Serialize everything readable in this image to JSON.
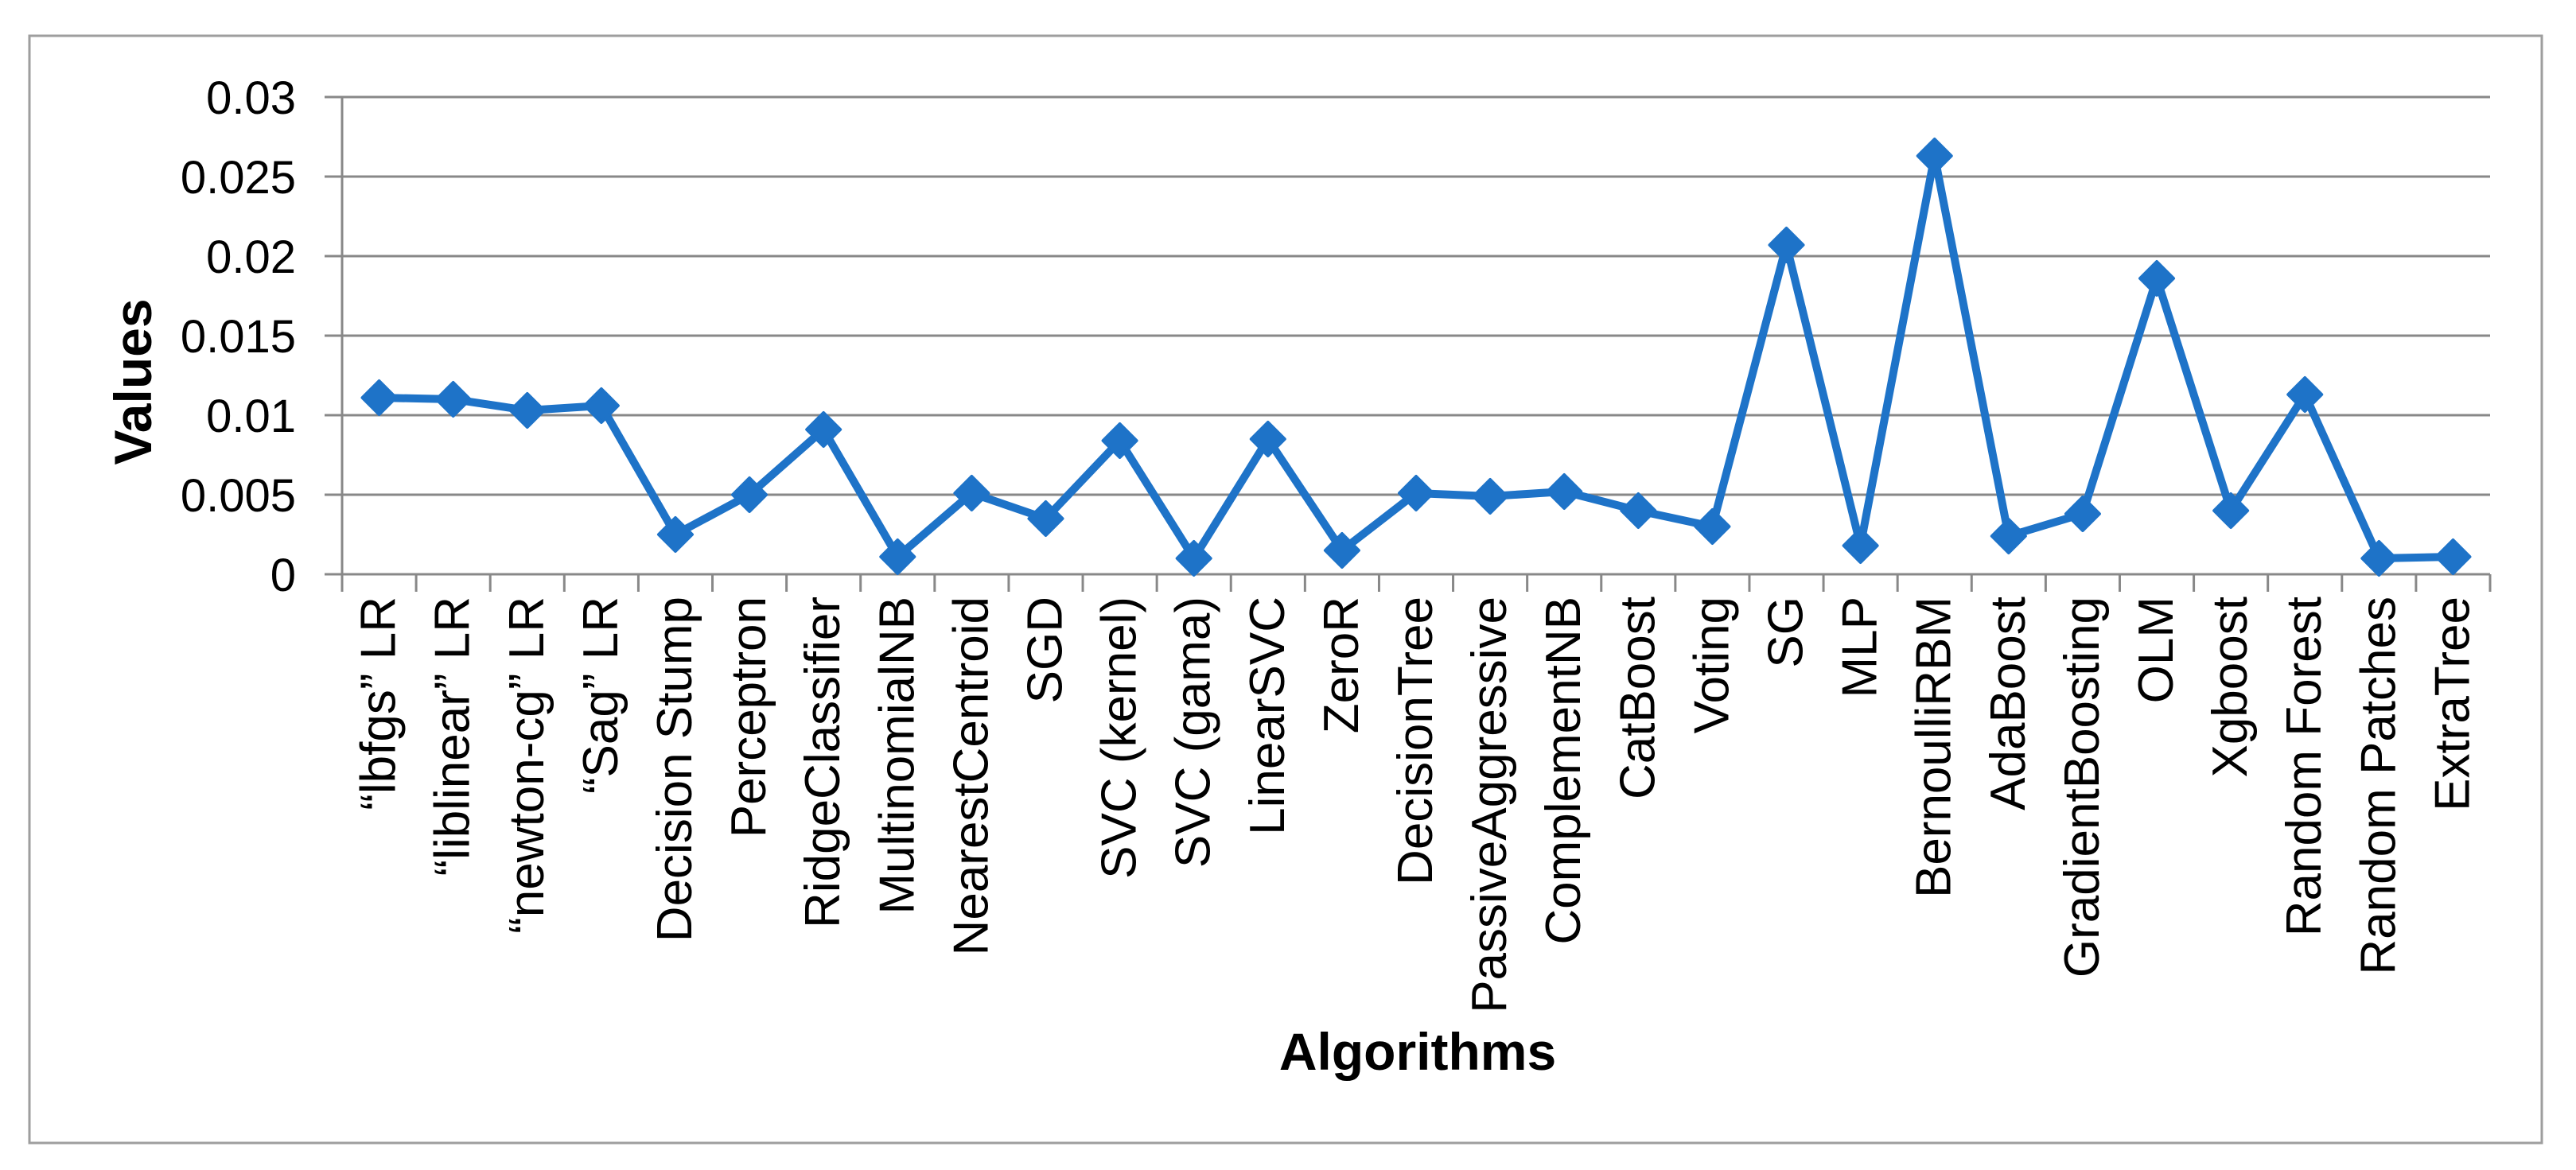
{
  "chart_data": {
    "type": "line",
    "title": "",
    "xlabel": "Algorithms",
    "ylabel": "Values",
    "legend": "none",
    "grid": "horizontal",
    "ylim": [
      0,
      0.03
    ],
    "y_tick_step": 0.005,
    "y_tick_labels": [
      "0",
      "0.005",
      "0.01",
      "0.015",
      "0.02",
      "0.025",
      "0.03"
    ],
    "categories": [
      "“lbfgs” LR",
      "“liblinear” LR",
      "“newton-cg” LR",
      "“Sag” LR",
      "Decision Stump",
      "Perceptron",
      "RidgeClassifier",
      "MultinomialNB",
      "NearestCentroid",
      "SGD",
      "SVC (kernel)",
      "SVC (gama)",
      "LinearSVC",
      "ZeroR",
      "DecisionTree",
      "PassiveAggressive",
      "ComplementNB",
      "CatBoost",
      "Voting",
      "SG",
      "MLP",
      "BernoulliRBM",
      "AdaBoost",
      "GradientBoosting",
      "OLM",
      "Xgboost",
      "Random Forest",
      "Random Patches",
      "ExtraTree"
    ],
    "series": [
      {
        "name": "Values",
        "values": [
          0.0111,
          0.011,
          0.0103,
          0.0106,
          0.0025,
          0.005,
          0.0091,
          0.0011,
          0.0051,
          0.0035,
          0.0084,
          0.001,
          0.0085,
          0.0015,
          0.0051,
          0.0049,
          0.0052,
          0.004,
          0.003,
          0.0207,
          0.0018,
          0.0263,
          0.0024,
          0.0038,
          0.0186,
          0.004,
          0.0113,
          0.001,
          0.0011
        ]
      }
    ],
    "marker": "diamond",
    "colors": {
      "line": "#1E73C8",
      "marker": "#1E73C8",
      "gridline": "#888888",
      "axis": "#888888",
      "border": "#9E9E9E",
      "text": "#000000",
      "background": "#FFFFFF"
    }
  }
}
